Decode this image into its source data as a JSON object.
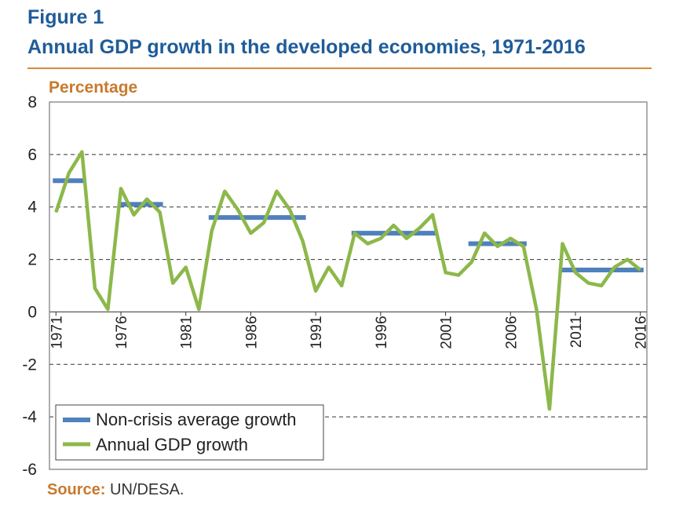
{
  "figure_label": "Figure 1",
  "title": "Annual GDP growth in the developed economies, 1971-2016",
  "ylabel": "Percentage",
  "source_label": "Source:",
  "source_text": " UN/DESA.",
  "colors": {
    "title": "#1f5c99",
    "accent": "#d98a3a",
    "line": "#8cb84a",
    "average": "#4f81bd"
  },
  "chart_data": {
    "type": "line",
    "title": "Annual GDP growth in the developed economies, 1971-2016",
    "xlabel": "",
    "ylabel": "Percentage",
    "ylim": [
      -6,
      8
    ],
    "yticks": [
      -6,
      -4,
      -2,
      0,
      2,
      4,
      6,
      8
    ],
    "xticks": [
      1971,
      1976,
      1981,
      1986,
      1991,
      1996,
      2001,
      2006,
      2011,
      2016
    ],
    "xlim": [
      1970.5,
      2016.5
    ],
    "grid": "horizontal dashed",
    "legend_position": "bottom-left",
    "series": [
      {
        "name": "Annual GDP growth",
        "type": "line",
        "x": [
          1971,
          1972,
          1973,
          1974,
          1975,
          1976,
          1977,
          1978,
          1979,
          1980,
          1981,
          1982,
          1983,
          1984,
          1985,
          1986,
          1987,
          1988,
          1989,
          1990,
          1991,
          1992,
          1993,
          1994,
          1995,
          1996,
          1997,
          1998,
          1999,
          2000,
          2001,
          2002,
          2003,
          2004,
          2005,
          2006,
          2007,
          2008,
          2009,
          2010,
          2011,
          2012,
          2013,
          2014,
          2015,
          2016
        ],
        "y": [
          3.8,
          5.3,
          6.1,
          0.9,
          0.1,
          4.7,
          3.7,
          4.3,
          3.8,
          1.1,
          1.7,
          0.1,
          3.1,
          4.6,
          3.9,
          3.0,
          3.4,
          4.6,
          3.9,
          2.7,
          0.8,
          1.7,
          1.0,
          3.0,
          2.6,
          2.8,
          3.3,
          2.8,
          3.2,
          3.7,
          1.5,
          1.4,
          1.9,
          3.0,
          2.5,
          2.8,
          2.5,
          0.1,
          -3.7,
          2.6,
          1.5,
          1.1,
          1.0,
          1.7,
          2.0,
          1.6
        ]
      },
      {
        "name": "Non-crisis average growth",
        "type": "segments",
        "segments": [
          {
            "x0": 1971,
            "x1": 1973,
            "y": 5.0
          },
          {
            "x0": 1976,
            "x1": 1979,
            "y": 4.1
          },
          {
            "x0": 1983,
            "x1": 1990,
            "y": 3.6
          },
          {
            "x0": 1994,
            "x1": 2000,
            "y": 3.0
          },
          {
            "x0": 2003,
            "x1": 2007,
            "y": 2.6
          },
          {
            "x0": 2010,
            "x1": 2016,
            "y": 1.6
          }
        ]
      }
    ],
    "legend": [
      "Non-crisis average growth",
      "Annual GDP growth"
    ]
  }
}
